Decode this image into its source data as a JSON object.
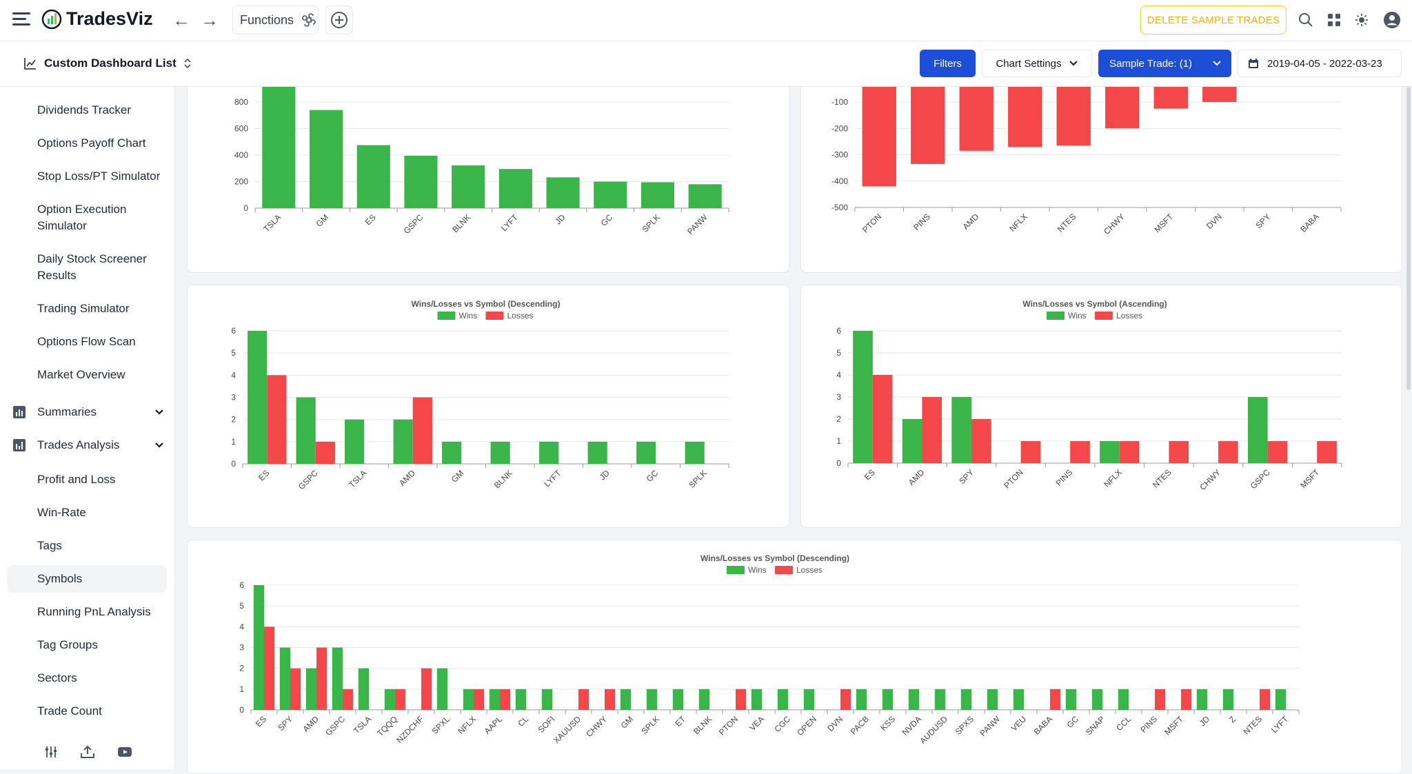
{
  "app": {
    "brand": "TradesViz"
  },
  "topbar": {
    "functions_label": "Functions",
    "delete_label": "DELETE SAMPLE TRADES"
  },
  "subbar": {
    "dashboard_title": "Custom Dashboard List",
    "filters_label": "Filters",
    "chart_settings_label": "Chart Settings",
    "sample_trades_label": "Sample Trade: (1)",
    "date_range": "2019-04-05 - 2022-03-23"
  },
  "sidebar": {
    "items": [
      "Dividends Tracker",
      "Options Payoff Chart",
      "Stop Loss/PT Simulator",
      "Option Execution Simulator",
      "Daily Stock Screener Results",
      "Trading Simulator",
      "Options Flow Scan",
      "Market Overview"
    ],
    "sections": [
      "Summaries",
      "Trades Analysis"
    ],
    "analysis_items": [
      "Profit and Loss",
      "Win-Rate",
      "Tags",
      "Symbols",
      "Running PnL Analysis",
      "Tag Groups",
      "Sectors",
      "Trade Count"
    ],
    "active_item": "Symbols"
  },
  "colors": {
    "win": "#3ab54a",
    "loss": "#f44749",
    "primary": "#1d4ed8",
    "warning": "#eab308"
  },
  "chart_data": [
    {
      "type": "bar",
      "categories": [
        "TSLA",
        "GM",
        "ES",
        "GSPC",
        "BLNK",
        "LYFT",
        "JD",
        "GC",
        "SPLK",
        "PANW"
      ],
      "series": [
        {
          "values": [
            920,
            740,
            475,
            395,
            322,
            295,
            232,
            200,
            195,
            180
          ]
        }
      ],
      "yticks": [
        0,
        200,
        400,
        600,
        800
      ],
      "ylim": [
        0,
        900
      ]
    },
    {
      "type": "bar",
      "categories": [
        "PTON",
        "PINS",
        "AMD",
        "NFLX",
        "NTES",
        "CHWY",
        "MSFT",
        "DVN",
        "SPY",
        "BABA"
      ],
      "series": [
        {
          "values": [
            -420,
            -335,
            -285,
            -270,
            -265,
            -200,
            -125,
            -100,
            -40,
            -35
          ]
        }
      ],
      "yticks": [
        -100,
        -200,
        -300,
        -400,
        -500
      ],
      "ylim": [
        -500,
        -60
      ]
    },
    {
      "type": "bar",
      "title": "Wins/Losses vs Symbol (Descending)",
      "legend": [
        "Wins",
        "Losses"
      ],
      "categories": [
        "ES",
        "GSPC",
        "TSLA",
        "AMD",
        "GM",
        "BLNK",
        "LYFT",
        "JD",
        "GC",
        "SPLK"
      ],
      "series": [
        {
          "name": "Wins",
          "values": [
            6,
            3,
            2,
            2,
            1,
            1,
            1,
            1,
            1,
            1
          ]
        },
        {
          "name": "Losses",
          "values": [
            4,
            1,
            0,
            3,
            0,
            0,
            0,
            0,
            0,
            0
          ]
        }
      ],
      "yticks": [
        0,
        1,
        2,
        3,
        4,
        5,
        6
      ],
      "ylim": [
        0,
        6
      ]
    },
    {
      "type": "bar",
      "title": "Wins/Losses vs Symbol (Ascending)",
      "legend": [
        "Wins",
        "Losses"
      ],
      "categories": [
        "ES",
        "AMD",
        "SPY",
        "PTON",
        "PINS",
        "NFLX",
        "NTES",
        "CHWY",
        "GSPC",
        "MSFT"
      ],
      "series": [
        {
          "name": "Wins",
          "values": [
            6,
            2,
            3,
            0,
            0,
            1,
            0,
            0,
            3,
            0
          ]
        },
        {
          "name": "Losses",
          "values": [
            4,
            3,
            2,
            1,
            1,
            1,
            1,
            1,
            1,
            1
          ]
        }
      ],
      "yticks": [
        0,
        1,
        2,
        3,
        4,
        5,
        6
      ],
      "ylim": [
        0,
        6
      ]
    },
    {
      "type": "bar",
      "title": "Wins/Losses vs Symbol (Descending)",
      "legend": [
        "Wins",
        "Losses"
      ],
      "categories": [
        "ES",
        "SPY",
        "AMD",
        "GSPC",
        "TSLA",
        "TQQQ",
        "NZDCHF",
        "SPXL",
        "NFLX",
        "AAPL",
        "CL",
        "SOFI",
        "XAUUSD",
        "CHWY",
        "GM",
        "SPLK",
        "ET",
        "BLNK",
        "PTON",
        "VEA",
        "CGC",
        "OPEN",
        "DVN",
        "PACB",
        "KSS",
        "NVDA",
        "AUDUSD",
        "SPXS",
        "PANW",
        "VEU",
        "BABA",
        "GC",
        "SNAP",
        "CCL",
        "PINS",
        "MSFT",
        "JD",
        "Z",
        "NTES",
        "LYFT"
      ],
      "series": [
        {
          "name": "Wins",
          "values": [
            6,
            3,
            2,
            3,
            2,
            1,
            0,
            2,
            1,
            1,
            1,
            1,
            0,
            0,
            1,
            1,
            1,
            1,
            0,
            1,
            1,
            1,
            0,
            1,
            1,
            1,
            1,
            1,
            1,
            1,
            0,
            1,
            1,
            1,
            0,
            0,
            1,
            1,
            0,
            1
          ]
        },
        {
          "name": "Losses",
          "values": [
            4,
            2,
            3,
            1,
            0,
            1,
            2,
            0,
            1,
            1,
            0,
            0,
            1,
            1,
            0,
            0,
            0,
            0,
            1,
            0,
            0,
            0,
            1,
            0,
            0,
            0,
            0,
            0,
            0,
            0,
            1,
            0,
            0,
            0,
            1,
            1,
            0,
            0,
            1,
            0
          ]
        }
      ],
      "yticks": [
        0,
        1,
        2,
        3,
        4,
        5,
        6
      ],
      "ylim": [
        0,
        6
      ]
    }
  ]
}
